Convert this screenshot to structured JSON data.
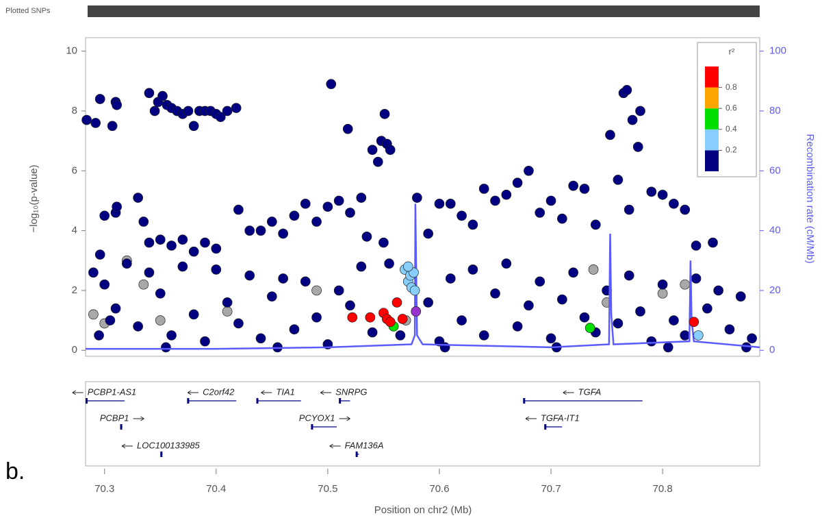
{
  "chart_data": {
    "type": "scatter",
    "track_label": "Plotted SNPs",
    "xlabel": "Position on chr2 (Mb)",
    "ylabel": "−log₁₀(p-value)",
    "y2label": "Recombination rate (cM/Mb)",
    "panel_label": "b.",
    "xlim": [
      70.283,
      70.887
    ],
    "xticks": [
      70.3,
      70.4,
      70.5,
      70.6,
      70.7,
      70.8
    ],
    "ylim": [
      -0.2,
      10.45
    ],
    "yticks": [
      0,
      2,
      4,
      6,
      8,
      10
    ],
    "y2lim": [
      -2,
      104.5
    ],
    "y2ticks": [
      0,
      20,
      40,
      60,
      80,
      100
    ],
    "y2color": "#5b5bff",
    "legend": {
      "title": "r²",
      "corner": "top-right",
      "colors": [
        "#000080",
        "#87cefa",
        "#00e000",
        "#ffa500",
        "#ff0000"
      ],
      "ticks": [
        0.2,
        0.4,
        0.6,
        0.8
      ]
    },
    "series": [
      {
        "color": "#a8a8a8",
        "x": [
          70.32,
          70.335,
          70.29,
          70.35,
          70.41,
          70.49,
          70.57,
          70.75,
          70.738,
          70.8,
          70.82,
          70.87,
          70.3
        ],
        "values": [
          3.0,
          2.2,
          1.2,
          1.0,
          1.3,
          2.0,
          1.0,
          1.6,
          2.7,
          1.9,
          2.2,
          1.8,
          0.9
        ]
      },
      {
        "color": "#000080",
        "x": [
          70.284,
          70.292,
          70.296,
          70.307,
          70.31,
          70.311,
          70.34,
          70.345,
          70.348,
          70.352,
          70.356,
          70.36,
          70.365,
          70.37,
          70.375,
          70.38,
          70.385,
          70.39,
          70.395,
          70.4,
          70.404,
          70.41,
          70.418,
          70.503,
          70.518,
          70.54,
          70.545,
          70.548,
          70.551,
          70.553,
          70.556,
          70.753,
          70.765,
          70.768,
          70.773,
          70.778,
          70.78,
          70.296,
          70.3,
          70.31,
          70.311,
          70.33,
          70.335,
          70.34,
          70.35,
          70.36,
          70.37,
          70.38,
          70.39,
          70.4,
          70.42,
          70.43,
          70.44,
          70.45,
          70.46,
          70.47,
          70.48,
          70.49,
          70.5,
          70.51,
          70.52,
          70.53,
          70.535,
          70.55,
          70.58,
          70.6,
          70.61,
          70.62,
          70.64,
          70.65,
          70.66,
          70.67,
          70.68,
          70.69,
          70.7,
          70.72,
          70.73,
          70.76,
          70.77,
          70.79,
          70.8,
          70.81,
          70.82,
          70.83,
          70.845,
          70.74,
          70.71,
          70.63,
          70.59,
          70.29,
          70.3,
          70.31,
          70.32,
          70.33,
          70.34,
          70.35,
          70.36,
          70.37,
          70.38,
          70.39,
          70.4,
          70.41,
          70.42,
          70.43,
          70.44,
          70.45,
          70.46,
          70.47,
          70.48,
          70.49,
          70.5,
          70.51,
          70.52,
          70.53,
          70.54,
          70.555,
          70.565,
          70.59,
          70.6,
          70.61,
          70.62,
          70.63,
          70.64,
          70.65,
          70.66,
          70.67,
          70.68,
          70.69,
          70.7,
          70.71,
          70.72,
          70.73,
          70.74,
          70.75,
          70.76,
          70.77,
          70.78,
          70.79,
          70.8,
          70.81,
          70.82,
          70.83,
          70.84,
          70.85,
          70.86,
          70.87,
          70.88,
          70.295,
          70.305,
          70.355,
          70.455,
          70.605,
          70.705,
          70.805,
          70.875
        ],
        "values": [
          7.7,
          7.6,
          8.4,
          7.5,
          8.3,
          8.2,
          8.6,
          8.0,
          8.3,
          8.5,
          8.2,
          8.1,
          8.0,
          7.9,
          8.0,
          7.5,
          8.0,
          8.0,
          8.0,
          7.9,
          7.8,
          8.0,
          8.1,
          8.9,
          7.4,
          6.7,
          6.3,
          7.0,
          7.9,
          6.9,
          6.7,
          7.2,
          8.6,
          8.7,
          7.7,
          6.8,
          8.0,
          3.2,
          4.5,
          4.6,
          4.8,
          5.1,
          4.3,
          3.6,
          3.7,
          3.5,
          3.7,
          3.3,
          3.6,
          3.4,
          4.7,
          4.0,
          4.0,
          4.3,
          3.9,
          4.5,
          4.9,
          4.3,
          4.8,
          5.0,
          4.6,
          5.1,
          3.8,
          3.6,
          5.1,
          4.9,
          4.9,
          4.5,
          5.4,
          5.0,
          5.2,
          5.6,
          6.0,
          4.6,
          5.0,
          5.5,
          5.4,
          5.7,
          4.7,
          5.3,
          5.2,
          4.9,
          4.7,
          3.5,
          3.6,
          4.2,
          4.4,
          4.2,
          3.9,
          2.6,
          2.2,
          1.4,
          2.9,
          0.8,
          2.6,
          1.9,
          0.5,
          2.8,
          1.2,
          0.3,
          2.7,
          1.6,
          0.9,
          2.5,
          0.4,
          1.8,
          2.4,
          0.7,
          2.3,
          1.1,
          0.2,
          2.0,
          1.5,
          2.8,
          0.6,
          2.9,
          0.5,
          1.6,
          0.3,
          2.4,
          1.0,
          2.7,
          0.5,
          1.9,
          2.9,
          0.8,
          1.5,
          2.3,
          0.4,
          1.7,
          2.6,
          1.1,
          0.6,
          2.0,
          0.9,
          2.5,
          1.3,
          0.3,
          2.2,
          1.0,
          0.5,
          2.4,
          1.4,
          2.0,
          0.7,
          1.8,
          0.4,
          0.5,
          1.0,
          0.1,
          0.1,
          0.1,
          0.1,
          0.1,
          0.1
        ]
      },
      {
        "color": "#5b5bff",
        "axis": "y2",
        "x": [
          70.283,
          70.4,
          70.5,
          70.575,
          70.578,
          70.5785,
          70.58,
          70.585,
          70.7,
          70.752,
          70.753,
          70.754,
          70.756,
          70.824,
          70.825,
          70.826,
          70.828,
          70.887
        ],
        "values": [
          0.5,
          0.5,
          1,
          2,
          5,
          49,
          5,
          2,
          1,
          2,
          39,
          12,
          2,
          3,
          30,
          10,
          3,
          1
        ]
      },
      {
        "color": "#87cefa",
        "x": [
          70.569,
          70.572,
          70.574,
          70.575,
          70.577,
          70.578,
          70.572,
          70.832
        ],
        "values": [
          2.7,
          2.3,
          2.5,
          2.1,
          2.6,
          2.0,
          2.8,
          0.5
        ]
      },
      {
        "color": "#00e000",
        "x": [
          70.559,
          70.735
        ],
        "values": [
          0.8,
          0.75
        ]
      },
      {
        "color": "#ff0000",
        "x": [
          70.522,
          70.538,
          70.55,
          70.553,
          70.556,
          70.562,
          70.567,
          70.828
        ],
        "values": [
          1.1,
          1.1,
          1.25,
          1.05,
          0.95,
          1.6,
          1.05,
          0.95
        ]
      },
      {
        "color": "#9932cc",
        "x": [
          70.579
        ],
        "values": [
          1.3
        ]
      }
    ],
    "gene_rows": [
      [
        {
          "name": "PCBP1-AS1",
          "start": 70.283,
          "end": 70.318,
          "strand": "-"
        },
        {
          "name": "C2orf42",
          "start": 70.374,
          "end": 70.418,
          "strand": "-"
        },
        {
          "name": "TIA1",
          "start": 70.436,
          "end": 70.476,
          "strand": "-"
        },
        {
          "name": "SNRPG",
          "start": 70.51,
          "end": 70.52,
          "strand": "-"
        },
        {
          "name": "TGFA",
          "start": 70.675,
          "end": 70.782,
          "strand": "-"
        }
      ],
      [
        {
          "name": "PCBP1",
          "start": 70.314,
          "end": 70.316,
          "strand": "+"
        },
        {
          "name": "PCYOX1",
          "start": 70.485,
          "end": 70.508,
          "strand": "+"
        },
        {
          "name": "TGFA-IT1",
          "start": 70.694,
          "end": 70.71,
          "strand": "-"
        }
      ],
      [
        {
          "name": "LOC100133985",
          "start": 70.35,
          "end": 70.352,
          "strand": "-"
        },
        {
          "name": "FAM136A",
          "start": 70.525,
          "end": 70.528,
          "strand": "-"
        }
      ]
    ]
  }
}
